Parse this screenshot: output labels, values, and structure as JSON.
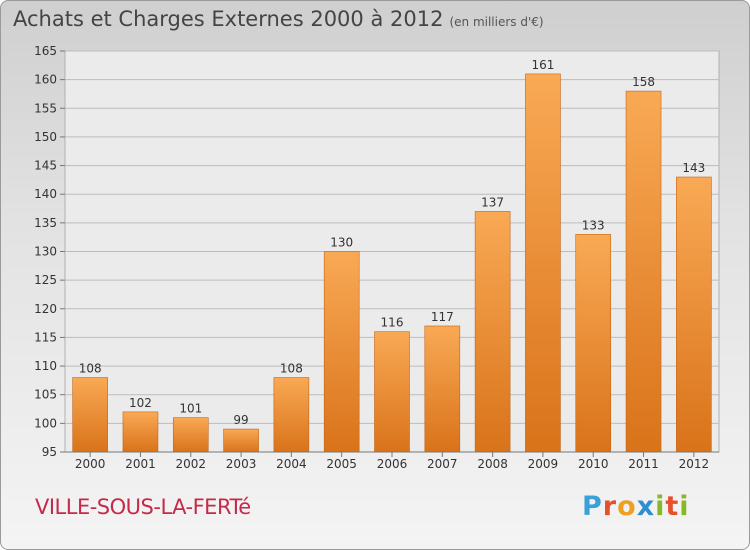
{
  "header": {
    "title": "Achats et Charges Externes 2000 à 2012",
    "subtitle": "(en milliers d'€)"
  },
  "footer": {
    "city": "VILLE-SOUS-LA-FERTé",
    "brand_letters": [
      {
        "ch": "P",
        "color": "#3aa0d8"
      },
      {
        "ch": "r",
        "color": "#e8502a"
      },
      {
        "ch": "o",
        "color": "#f0a020"
      },
      {
        "ch": "x",
        "color": "#2e8fd0"
      },
      {
        "ch": "i",
        "color": "#86b828"
      },
      {
        "ch": "t",
        "color": "#e8502a"
      },
      {
        "ch": "i",
        "color": "#86b828"
      }
    ]
  },
  "colors": {
    "bar_top": "#f9a955",
    "bar_bottom": "#d9731a",
    "bar_edge": "#c4661a",
    "grid": "#bdbdbd",
    "axis_text": "#333333"
  },
  "chart_data": {
    "type": "bar",
    "title": "Achats et Charges Externes 2000 à 2012",
    "subtitle": "(en milliers d'€)",
    "xlabel": "",
    "ylabel": "",
    "categories": [
      "2000",
      "2001",
      "2002",
      "2003",
      "2004",
      "2005",
      "2006",
      "2007",
      "2008",
      "2009",
      "2010",
      "2011",
      "2012"
    ],
    "values": [
      108,
      102,
      101,
      99,
      108,
      130,
      116,
      117,
      137,
      161,
      133,
      158,
      143
    ],
    "ylim": [
      95,
      165
    ],
    "yticks": [
      95,
      100,
      105,
      110,
      115,
      120,
      125,
      130,
      135,
      140,
      145,
      150,
      155,
      160,
      165
    ],
    "grid": true,
    "data_labels": true
  }
}
